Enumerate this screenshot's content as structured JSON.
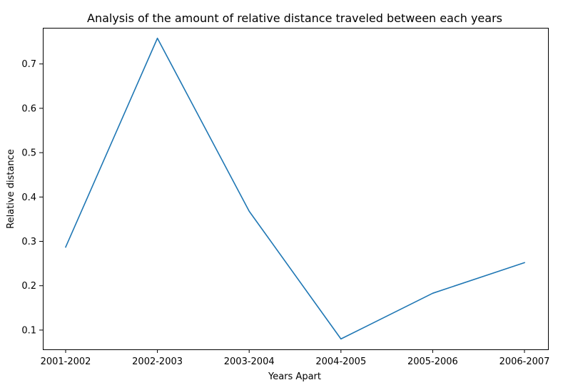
{
  "chart_data": {
    "type": "line",
    "title": "Analysis of the amount of relative distance traveled between each years",
    "xlabel": "Years Apart",
    "ylabel": "Relative distance",
    "categories": [
      "2001-2002",
      "2002-2003",
      "2003-2004",
      "2004-2005",
      "2005-2006",
      "2006-2007"
    ],
    "series": [
      {
        "values": [
          0.287,
          0.758,
          0.368,
          0.08,
          0.183,
          0.252
        ],
        "color": "#1f77b4"
      }
    ],
    "yticks": [
      "0.1",
      "0.2",
      "0.3",
      "0.4",
      "0.5",
      "0.6",
      "0.7"
    ],
    "ylim": [
      0.0565,
      0.7815
    ],
    "grid": false,
    "legend": "none"
  }
}
